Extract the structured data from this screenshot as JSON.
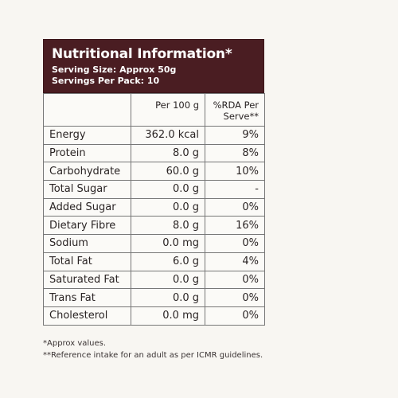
{
  "header": {
    "title": "Nutritional Information*",
    "serving_size": "Serving Size: Approx 50g",
    "servings_per_pack": "Servings Per Pack: 10",
    "background_color": "#4a1d22"
  },
  "table": {
    "columns": [
      "",
      "Per 100 g",
      "%RDA Per Serve**"
    ],
    "rows": [
      {
        "nutrient": "Energy",
        "per_100g": "362.0 kcal",
        "rda": "9%"
      },
      {
        "nutrient": "Protein",
        "per_100g": "8.0 g",
        "rda": "8%"
      },
      {
        "nutrient": "Carbohydrate",
        "per_100g": "60.0 g",
        "rda": "10%"
      },
      {
        "nutrient": "Total Sugar",
        "per_100g": "0.0 g",
        "rda": "-"
      },
      {
        "nutrient": "Added Sugar",
        "per_100g": "0.0 g",
        "rda": "0%"
      },
      {
        "nutrient": "Dietary Fibre",
        "per_100g": "8.0 g",
        "rda": "16%"
      },
      {
        "nutrient": "Sodium",
        "per_100g": "0.0 mg",
        "rda": "0%"
      },
      {
        "nutrient": "Total Fat",
        "per_100g": "6.0 g",
        "rda": "4%"
      },
      {
        "nutrient": "Saturated Fat",
        "per_100g": "0.0 g",
        "rda": "0%"
      },
      {
        "nutrient": "Trans Fat",
        "per_100g": "0.0 g",
        "rda": "0%"
      },
      {
        "nutrient": "Cholesterol",
        "per_100g": "0.0 mg",
        "rda": "0%"
      }
    ]
  },
  "footnotes": {
    "approx": "*Approx values.",
    "reference": "**Reference intake for an adult as per ICMR guidelines."
  }
}
